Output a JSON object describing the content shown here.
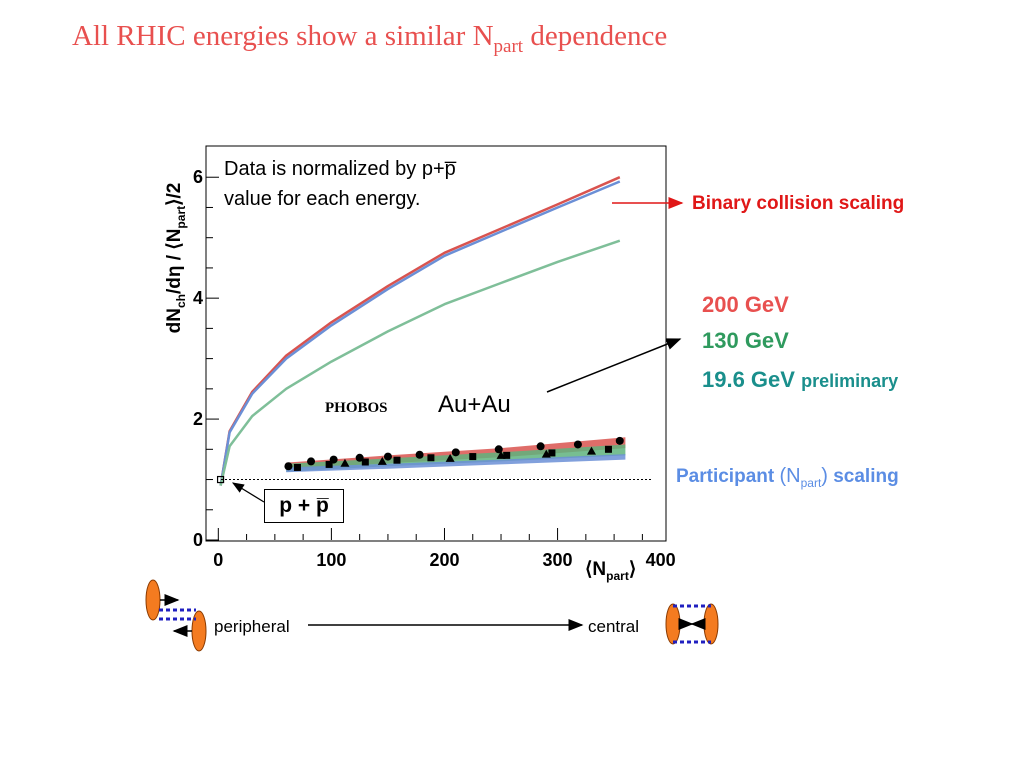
{
  "slide": {
    "title_main": "All RHIC energies show a similar N",
    "title_sub": "part",
    "title_end": " dependence",
    "binary_label": "Binary collision scaling",
    "energy_200": "200 GeV",
    "energy_130": "130 GeV",
    "energy_196": "19.6 GeV",
    "preliminary": "preliminary",
    "participant_a": "Participant",
    "participant_n": "(N",
    "participant_sub": "part",
    "participant_close": ")",
    "participant_b": "scaling",
    "note_line1": "Data is normalized by p+p̅",
    "note_line2": "value for each energy.",
    "phobos": "PHOBOS",
    "system": "Au+Au",
    "pp_label": "p + p̅",
    "peripheral": "peripheral",
    "central": "central"
  },
  "chart_data": {
    "type": "scatter",
    "xlabel": "⟨Npart⟩",
    "ylabel": "dNch/dη / ⟨Npart⟩/2",
    "xlim": [
      -10,
      395
    ],
    "ylim": [
      0,
      6.5
    ],
    "xticks": [
      0,
      100,
      200,
      300,
      400
    ],
    "yticks": [
      0,
      2,
      4,
      6
    ],
    "reference_line": 1.0,
    "pp_point": {
      "x": 2,
      "y": 1.0
    },
    "binary_scaling_curves": [
      {
        "name": "200 GeV",
        "color": "#d9534f",
        "x": [
          2,
          10,
          30,
          60,
          100,
          150,
          200,
          250,
          300,
          355
        ],
        "y": [
          0.9,
          1.8,
          2.45,
          3.05,
          3.6,
          4.2,
          4.75,
          5.15,
          5.55,
          6.0
        ]
      },
      {
        "name": "130 GeV",
        "color": "#6b8fd6",
        "x": [
          2,
          10,
          30,
          60,
          100,
          150,
          200,
          250,
          300,
          355
        ],
        "y": [
          0.9,
          1.78,
          2.42,
          3.0,
          3.55,
          4.15,
          4.7,
          5.1,
          5.5,
          5.93
        ]
      },
      {
        "name": "19.6 GeV",
        "color": "#7fbf99",
        "x": [
          2,
          10,
          30,
          60,
          100,
          150,
          200,
          250,
          300,
          355
        ],
        "y": [
          0.9,
          1.55,
          2.05,
          2.5,
          2.95,
          3.45,
          3.9,
          4.25,
          4.6,
          4.95
        ]
      }
    ],
    "bands": [
      {
        "name": "200 GeV",
        "color": "#d9534f",
        "x": [
          60,
          150,
          250,
          360
        ],
        "y_low": [
          1.17,
          1.27,
          1.37,
          1.52
        ],
        "y_high": [
          1.28,
          1.4,
          1.52,
          1.7
        ]
      },
      {
        "name": "130 GeV",
        "color": "#5fb37e",
        "x": [
          60,
          150,
          250,
          360
        ],
        "y_low": [
          1.13,
          1.22,
          1.3,
          1.4
        ],
        "y_high": [
          1.26,
          1.35,
          1.45,
          1.58
        ]
      },
      {
        "name": "19.6 GeV",
        "color": "#6b8fd6",
        "x": [
          60,
          150,
          250,
          360
        ],
        "y_low": [
          1.12,
          1.18,
          1.25,
          1.33
        ],
        "y_high": [
          1.2,
          1.26,
          1.33,
          1.42
        ]
      }
    ],
    "points": {
      "circles_200": {
        "x": [
          62,
          82,
          102,
          125,
          150,
          178,
          210,
          248,
          285,
          318,
          355
        ],
        "y": [
          1.22,
          1.3,
          1.33,
          1.36,
          1.38,
          1.41,
          1.45,
          1.5,
          1.55,
          1.58,
          1.64
        ]
      },
      "squares_130": {
        "x": [
          70,
          98,
          130,
          158,
          188,
          225,
          255,
          295,
          345
        ],
        "y": [
          1.2,
          1.25,
          1.29,
          1.32,
          1.36,
          1.38,
          1.4,
          1.44,
          1.5
        ]
      },
      "triangles_196": {
        "x": [
          112,
          145,
          205,
          250,
          290,
          330
        ],
        "y": [
          1.27,
          1.3,
          1.35,
          1.4,
          1.42,
          1.47
        ]
      }
    }
  }
}
